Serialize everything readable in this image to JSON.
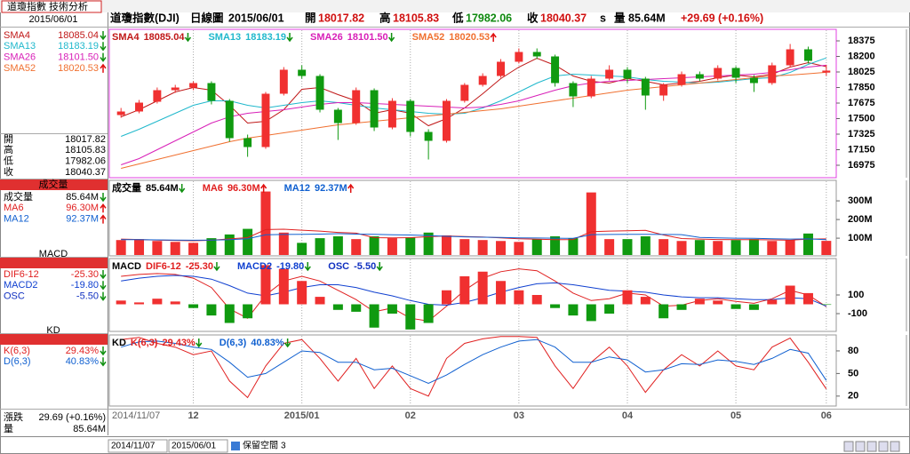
{
  "sidebar": {
    "tab": "道瓊指數 技術分析",
    "change_label": "漲跌",
    "change": "29.69 (+0.16%)"
  },
  "header": {
    "name": "道瓊指數(DJI)",
    "period": "日線圖",
    "date": "2015/06/01",
    "open_label": "開",
    "open": 18017.82,
    "high_label": "高",
    "high": 18105.83,
    "low_label": "低",
    "low": 17982.06,
    "close_label": "收",
    "close": 18040.37,
    "close_flag": "s",
    "volume_label": "量",
    "change": "+29.69 (+0.16%)"
  },
  "toolbar": {
    "space_label": "保留空間",
    "space_value": 3
  },
  "chart_data": [
    {
      "type": "candlestick",
      "categories": [
        "2014/11/07",
        null,
        null,
        null,
        "12",
        null,
        null,
        null,
        null,
        null,
        "2015/01",
        null,
        null,
        null,
        null,
        null,
        "02",
        null,
        null,
        null,
        null,
        null,
        "03",
        null,
        null,
        null,
        null,
        null,
        "04",
        null,
        null,
        null,
        null,
        null,
        "05",
        null,
        null,
        null,
        null,
        "06"
      ],
      "open": [
        17540,
        17580,
        17690,
        17820,
        17850,
        17900,
        17700,
        17280,
        17180,
        17780,
        18050,
        17980,
        17600,
        17450,
        17820,
        17400,
        17700,
        17350,
        17250,
        17700,
        17880,
        17980,
        18140,
        18250,
        18200,
        17900,
        17750,
        17950,
        18050,
        17950,
        17760,
        17880,
        18000,
        17950,
        18070,
        17960,
        17900,
        18100,
        18280,
        18017.82
      ],
      "high": [
        17620,
        17710,
        17850,
        17880,
        17920,
        17920,
        17720,
        17320,
        17800,
        18080,
        18100,
        18000,
        17620,
        17850,
        17840,
        17730,
        17720,
        17380,
        17720,
        17900,
        18010,
        18170,
        18290,
        18290,
        18220,
        17920,
        17980,
        18100,
        18080,
        17970,
        17900,
        18030,
        18030,
        18100,
        18090,
        17990,
        18130,
        18340,
        18310,
        18105.83
      ],
      "low": [
        17510,
        17560,
        17670,
        17790,
        17820,
        17660,
        17240,
        17070,
        17160,
        17760,
        17950,
        17570,
        17260,
        17430,
        17360,
        17380,
        17300,
        17040,
        17230,
        17680,
        17860,
        17960,
        18120,
        18170,
        17860,
        17630,
        17730,
        17930,
        17900,
        17600,
        17700,
        17860,
        17920,
        17930,
        17900,
        17800,
        17880,
        18080,
        18120,
        17982.06
      ],
      "close": [
        17580,
        17680,
        17820,
        17850,
        17900,
        17700,
        17280,
        17180,
        17780,
        18050,
        17980,
        17600,
        17450,
        17820,
        17400,
        17700,
        17350,
        17250,
        17700,
        17880,
        17980,
        18140,
        18250,
        18200,
        17900,
        17750,
        17950,
        18050,
        17950,
        17760,
        17880,
        18000,
        17950,
        18070,
        17960,
        17900,
        18100,
        18280,
        18150,
        18040.37
      ],
      "up_color": "#f03030",
      "down_color": "#109a10",
      "ylim": [
        16845,
        18495
      ],
      "yticks": [
        18375,
        18200,
        18025,
        17850,
        17675,
        17500,
        17325,
        17150,
        16975
      ],
      "series": [
        {
          "name": "SMA4",
          "type": "line",
          "color": "#c01818",
          "values": [
            17520,
            17600,
            17700,
            17800,
            17850,
            17820,
            17650,
            17450,
            17470,
            17600,
            17830,
            17850,
            17770,
            17700,
            17560,
            17600,
            17560,
            17420,
            17500,
            17620,
            17780,
            17950,
            18080,
            18180,
            18100,
            17980,
            17920,
            17900,
            17950,
            17920,
            17880,
            17900,
            17920,
            17960,
            17990,
            17970,
            18000,
            18080,
            18130,
            18085.04
          ],
          "last": 18085.04,
          "trend": "down"
        },
        {
          "name": "SMA13",
          "type": "line",
          "color": "#20b8cc",
          "values": [
            17300,
            17380,
            17470,
            17560,
            17650,
            17700,
            17700,
            17650,
            17620,
            17650,
            17680,
            17700,
            17680,
            17650,
            17620,
            17600,
            17580,
            17560,
            17550,
            17560,
            17620,
            17700,
            17800,
            17900,
            17980,
            18000,
            17990,
            17980,
            17970,
            17940,
            17920,
            17910,
            17900,
            17910,
            17930,
            17950,
            17960,
            18020,
            18110,
            18183.19
          ],
          "last": 18183.19,
          "trend": "down"
        },
        {
          "name": "SMA26",
          "type": "line",
          "color": "#d820b8",
          "values": [
            16980,
            17050,
            17150,
            17250,
            17350,
            17450,
            17520,
            17560,
            17580,
            17600,
            17630,
            17660,
            17680,
            17680,
            17670,
            17660,
            17650,
            17640,
            17630,
            17620,
            17630,
            17660,
            17700,
            17760,
            17820,
            17870,
            17900,
            17920,
            17930,
            17940,
            17950,
            17960,
            17970,
            17980,
            17990,
            18000,
            18020,
            18050,
            18080,
            18101.5
          ],
          "last": 18101.5,
          "last_label": "18101.50",
          "trend": "down"
        },
        {
          "name": "SMA52",
          "type": "line",
          "color": "#f07030",
          "values": [
            16940,
            16990,
            17040,
            17090,
            17140,
            17190,
            17240,
            17280,
            17310,
            17340,
            17370,
            17400,
            17430,
            17450,
            17470,
            17490,
            17510,
            17530,
            17550,
            17570,
            17590,
            17610,
            17640,
            17670,
            17700,
            17730,
            17760,
            17790,
            17820,
            17840,
            17860,
            17880,
            17900,
            17920,
            17940,
            17960,
            17980,
            17990,
            18005,
            18020.53
          ],
          "last": 18020.53,
          "trend": "up"
        }
      ]
    },
    {
      "type": "bar",
      "ylim": [
        10,
        405
      ],
      "yticks": [
        {
          "value": 100,
          "label": "100M"
        },
        {
          "value": 200,
          "label": "200M"
        },
        {
          "value": 300,
          "label": "300M"
        }
      ],
      "series": [
        {
          "name": "成交量",
          "type": "bar",
          "color": "#000000",
          "up_color": "#f03030",
          "down_color": "#109a10",
          "values": [
            90,
            95,
            85,
            80,
            75,
            100,
            120,
            150,
            350,
            130,
            75,
            100,
            110,
            95,
            110,
            100,
            105,
            130,
            115,
            95,
            90,
            85,
            80,
            95,
            110,
            100,
            345,
            95,
            95,
            110,
            95,
            85,
            90,
            85,
            90,
            95,
            85,
            90,
            125,
            85.64
          ],
          "last": 85.64,
          "last_label": "85.64M",
          "trend": "down"
        },
        {
          "name": "MA6",
          "type": "line",
          "color": "#e02020",
          "values": [
            95,
            93,
            90,
            88,
            86,
            89,
            96,
            103,
            146,
            148,
            143,
            138,
            131,
            127,
            103,
            102,
            103,
            108,
            112,
            109,
            106,
            102,
            97,
            94,
            92,
            93,
            135,
            138,
            140,
            142,
            117,
            98,
            95,
            93,
            92,
            92,
            91,
            89,
            95,
            96.3
          ],
          "last": 96.3,
          "last_label": "96.30M",
          "trend": "up"
        },
        {
          "name": "MA12",
          "type": "line",
          "color": "#1060d0",
          "values": [
            92,
            92,
            91,
            90,
            89,
            90,
            92,
            97,
            118,
            120,
            121,
            122,
            124,
            122,
            121,
            118,
            117,
            114,
            110,
            107,
            105,
            104,
            102,
            101,
            100,
            99,
            119,
            120,
            121,
            121,
            120,
            119,
            104,
            102,
            100,
            99,
            97,
            95,
            96,
            92.37
          ],
          "last": 92.37,
          "last_label": "92.37M",
          "trend": "up"
        }
      ]
    },
    {
      "type": "combo",
      "title": "MACD",
      "ylim": [
        -281,
        481
      ],
      "yticks": [
        100,
        -100
      ],
      "series": [
        {
          "name": "DIF6-12",
          "type": "line",
          "color": "#e02020",
          "values": [
            300,
            320,
            330,
            320,
            280,
            180,
            -50,
            -150,
            100,
            250,
            300,
            250,
            150,
            50,
            -80,
            -40,
            -150,
            -180,
            -20,
            150,
            280,
            350,
            380,
            360,
            250,
            120,
            40,
            60,
            120,
            100,
            -20,
            -10,
            40,
            60,
            30,
            10,
            60,
            150,
            100,
            -25.3
          ],
          "last": -25.3,
          "last_label": "-25.30",
          "trend": "down"
        },
        {
          "name": "MACD2",
          "type": "line",
          "color": "#1040d0",
          "values": [
            250,
            280,
            300,
            310,
            300,
            270,
            200,
            120,
            90,
            130,
            180,
            210,
            210,
            180,
            130,
            90,
            40,
            0,
            -10,
            20,
            70,
            130,
            180,
            220,
            230,
            210,
            180,
            150,
            140,
            130,
            100,
            80,
            70,
            70,
            60,
            50,
            50,
            70,
            60,
            -19.8
          ],
          "last": -19.8,
          "last_label": "-19.80",
          "trend": "down"
        },
        {
          "name": "OSC",
          "type": "bar",
          "color": "#1030c0",
          "up_color": "#f03030",
          "down_color": "#109a10",
          "values": [
            40,
            20,
            60,
            30,
            -40,
            -120,
            -200,
            -150,
            420,
            380,
            250,
            80,
            -60,
            -80,
            -250,
            -100,
            -270,
            -200,
            150,
            300,
            350,
            250,
            150,
            100,
            -40,
            -120,
            -180,
            -100,
            150,
            80,
            -150,
            -60,
            60,
            40,
            -50,
            -60,
            50,
            200,
            120,
            -5.5
          ],
          "last": -5.5,
          "last_label": "-5.50",
          "trend": "down"
        }
      ]
    },
    {
      "type": "line",
      "title": "KD",
      "ylim": [
        8,
        100
      ],
      "yticks": [
        80,
        50,
        20
      ],
      "series": [
        {
          "name": "K(6,3)",
          "type": "line",
          "color": "#e02020",
          "values": [
            95,
            98,
            90,
            85,
            75,
            80,
            40,
            18,
            60,
            90,
            95,
            70,
            40,
            70,
            30,
            60,
            30,
            20,
            70,
            90,
            96,
            99,
            99,
            98,
            60,
            30,
            65,
            85,
            60,
            25,
            55,
            75,
            60,
            80,
            60,
            55,
            85,
            97,
            65,
            29.43
          ],
          "last": 29.43,
          "last_label": "29.43%",
          "trend": "down"
        },
        {
          "name": "D(6,3)",
          "type": "line",
          "color": "#1060d0",
          "values": [
            85,
            92,
            93,
            90,
            85,
            82,
            65,
            45,
            50,
            65,
            80,
            78,
            65,
            65,
            55,
            57,
            47,
            37,
            48,
            62,
            75,
            85,
            93,
            95,
            85,
            65,
            65,
            72,
            68,
            52,
            55,
            63,
            62,
            68,
            66,
            62,
            70,
            82,
            77,
            40.83
          ],
          "last": 40.83,
          "last_label": "40.83%",
          "trend": "down"
        }
      ]
    }
  ]
}
